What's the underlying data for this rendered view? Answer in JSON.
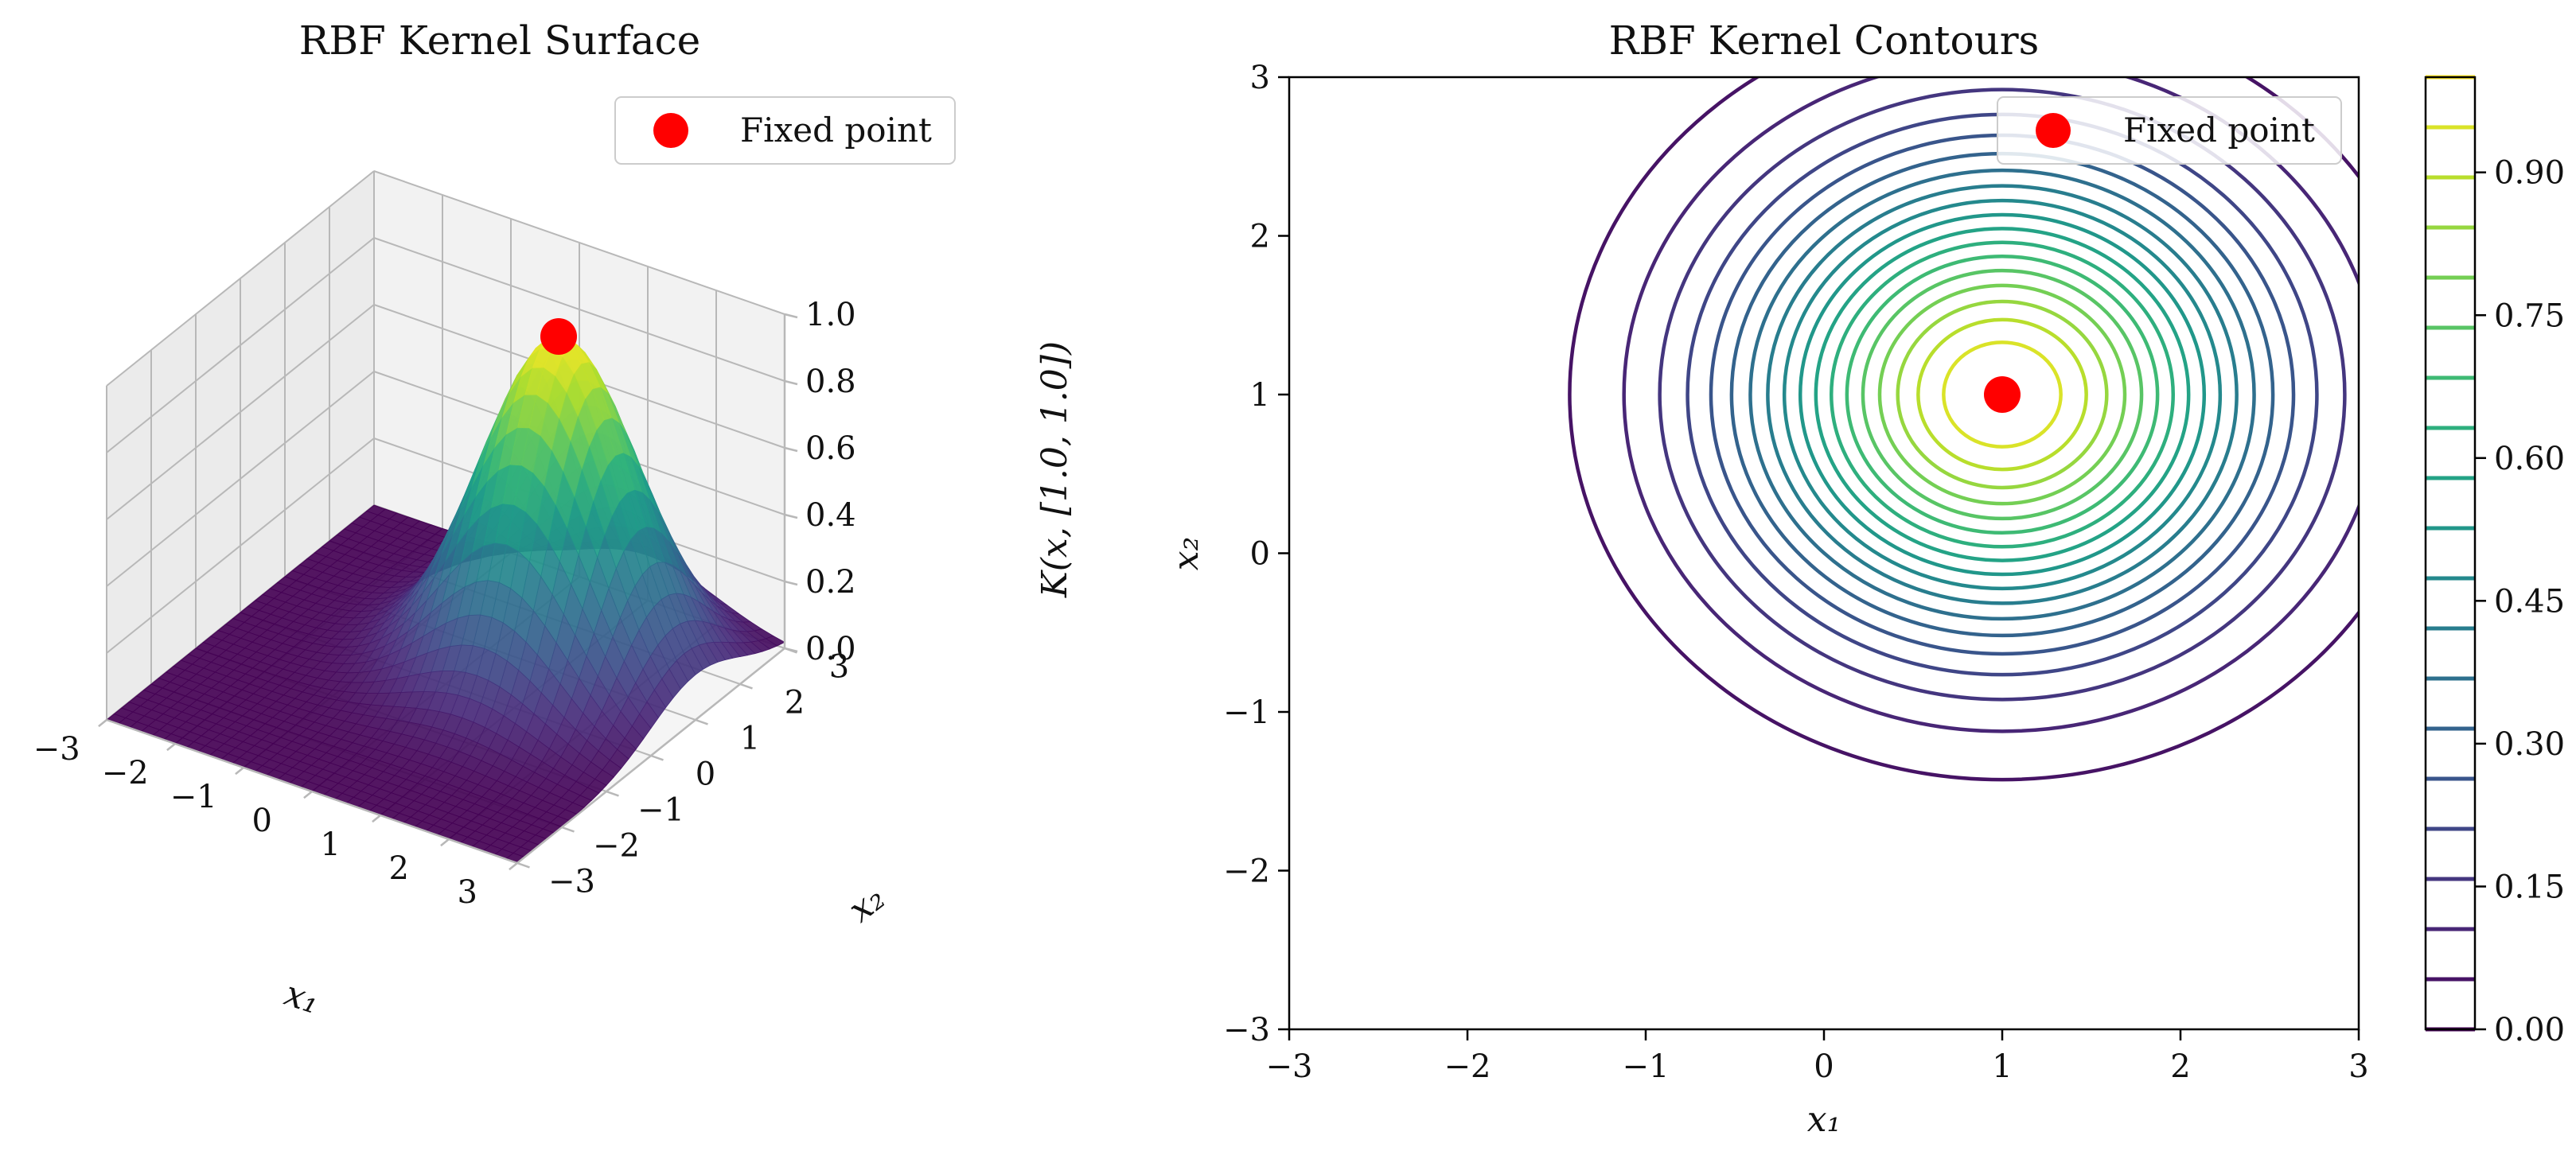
{
  "figure": {
    "background": "#ffffff"
  },
  "chart_data": [
    {
      "type": "surface3d",
      "title": "RBF Kernel Surface",
      "xlabel": "x₁",
      "ylabel": "x₂",
      "zlabel": "K(x, [1.0, 1.0])",
      "xlim": [
        -3,
        3
      ],
      "ylim": [
        -3,
        3
      ],
      "zlim": [
        0,
        1
      ],
      "x_ticks": [
        "−3",
        "−2",
        "−1",
        "0",
        "1",
        "2",
        "3"
      ],
      "y_ticks": [
        "−3",
        "−2",
        "−1",
        "0",
        "1",
        "2",
        "3"
      ],
      "z_ticks": [
        "0.0",
        "0.2",
        "0.4",
        "0.6",
        "0.8",
        "1.0"
      ],
      "kernel": {
        "center": [
          1.0,
          1.0
        ],
        "sigma": 1.0
      },
      "fixed_point": {
        "x": 1.0,
        "y": 1.0,
        "z": 1.0,
        "color": "#ff0000"
      },
      "legend": {
        "label": "Fixed point",
        "position": "top-right"
      },
      "colormap": "viridis",
      "grid": true
    },
    {
      "type": "contour",
      "title": "RBF Kernel Contours",
      "xlabel": "x₁",
      "ylabel": "x₂",
      "xlim": [
        -3,
        3
      ],
      "ylim": [
        -3,
        3
      ],
      "x_ticks": [
        "−3",
        "−2",
        "−1",
        "0",
        "1",
        "2",
        "3"
      ],
      "y_ticks": [
        "−3",
        "−2",
        "−1",
        "0",
        "1",
        "2",
        "3"
      ],
      "kernel": {
        "center": [
          1.0,
          1.0
        ],
        "sigma": 1.0
      },
      "levels_min": 0.0,
      "levels_max": 1.0,
      "level_count": 20,
      "fixed_point": {
        "x": 1.0,
        "y": 1.0,
        "color": "#ff0000"
      },
      "legend": {
        "label": "Fixed point",
        "position": "top-right"
      },
      "colormap": "viridis",
      "colorbar": {
        "ticks": [
          "0.00",
          "0.15",
          "0.30",
          "0.45",
          "0.60",
          "0.75",
          "0.90"
        ]
      }
    }
  ]
}
